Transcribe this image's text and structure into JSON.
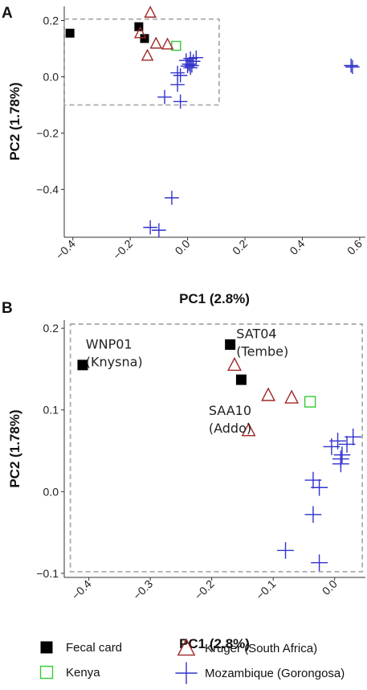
{
  "colors": {
    "fecal_card": "#000000",
    "kenya": "#33cc33",
    "kruger": "#a02828",
    "mozambique": "#3232cc",
    "zoom_box": "#aaaaaa",
    "axis": "#333333"
  },
  "legend": {
    "items": [
      {
        "label": "Fecal card",
        "marker": "filled-square",
        "color_key": "fecal_card"
      },
      {
        "label": "Kenya",
        "marker": "open-square",
        "color_key": "kenya"
      },
      {
        "label": "Kruger (South Africa)",
        "marker": "open-triangle",
        "color_key": "kruger"
      },
      {
        "label": "Mozambique (Gorongosa)",
        "marker": "plus",
        "color_key": "mozambique"
      }
    ]
  },
  "chart_data": [
    {
      "panel": "A",
      "type": "scatter",
      "xlabel": "PC1 (2.8%)",
      "ylabel": "PC2 (1.78%)",
      "xlim": [
        -0.43,
        0.62
      ],
      "ylim": [
        -0.57,
        0.25
      ],
      "xticks": [
        -0.4,
        -0.2,
        0.0,
        0.2,
        0.4,
        0.6
      ],
      "xtick_labels": [
        "−0.4",
        "−0.2",
        "0.0",
        "0.2",
        "0.4",
        "0.6"
      ],
      "yticks": [
        0.2,
        0.0,
        -0.2,
        -0.4
      ],
      "ytick_labels": [
        "0.2",
        "0.0",
        "−0.2",
        "−0.4"
      ],
      "zoom_region": {
        "x": [
          -0.43,
          0.11
        ],
        "y": [
          -0.1,
          0.205
        ]
      },
      "series": [
        {
          "name": "Fecal card",
          "points": [
            [
              -0.41,
              0.155
            ],
            [
              -0.17,
              0.178
            ],
            [
              -0.15,
              0.136
            ]
          ]
        },
        {
          "name": "Kenya",
          "points": [
            [
              -0.04,
              0.11
            ]
          ]
        },
        {
          "name": "Kruger (South Africa)",
          "points": [
            [
              -0.13,
              0.228
            ],
            [
              -0.165,
              0.155
            ],
            [
              -0.11,
              0.118
            ],
            [
              -0.07,
              0.115
            ],
            [
              -0.14,
              0.075
            ]
          ]
        },
        {
          "name": "Mozambique (Gorongosa)",
          "points": [
            [
              -0.005,
              0.058
            ],
            [
              0.01,
              0.065
            ],
            [
              0.02,
              0.055
            ],
            [
              0.005,
              0.045
            ],
            [
              0.0,
              0.038
            ],
            [
              0.01,
              0.032
            ],
            [
              0.015,
              0.04
            ],
            [
              0.03,
              0.068
            ],
            [
              -0.035,
              0.014
            ],
            [
              -0.025,
              0.005
            ],
            [
              -0.035,
              -0.028
            ],
            [
              -0.08,
              -0.072
            ],
            [
              -0.025,
              -0.088
            ],
            [
              0.57,
              0.04
            ],
            [
              0.575,
              0.035
            ],
            [
              -0.055,
              -0.43
            ],
            [
              -0.13,
              -0.535
            ],
            [
              -0.1,
              -0.545
            ]
          ]
        }
      ]
    },
    {
      "panel": "B",
      "type": "scatter",
      "xlabel": "PC1 (2.8%)",
      "ylabel": "PC2 (1.78%)",
      "xlim": [
        -0.44,
        0.05
      ],
      "ylim": [
        -0.105,
        0.21
      ],
      "xticks": [
        -0.4,
        -0.3,
        -0.2,
        -0.1,
        0.0
      ],
      "xtick_labels": [
        "−0.4",
        "−0.3",
        "−0.2",
        "−0.1",
        "0.0"
      ],
      "yticks": [
        0.2,
        0.1,
        0.0,
        -0.1
      ],
      "ytick_labels": [
        "0.2",
        "0.1",
        "0.0",
        "−0.1"
      ],
      "zoom_region": {
        "x": [
          -0.43,
          0.045
        ],
        "y": [
          -0.098,
          0.205
        ]
      },
      "annotations": [
        {
          "lines": [
            "WNP01",
            "(Knysna)"
          ],
          "x": -0.405,
          "y": 0.175
        },
        {
          "lines": [
            "SAT04",
            "(Tembe)"
          ],
          "x": -0.16,
          "y": 0.188
        },
        {
          "lines": [
            "SAA10",
            "(Addo)"
          ],
          "x": -0.205,
          "y": 0.094
        }
      ],
      "series": [
        {
          "name": "Fecal card",
          "points": [
            [
              -0.41,
              0.155
            ],
            [
              -0.17,
              0.18
            ],
            [
              -0.152,
              0.137
            ]
          ]
        },
        {
          "name": "Kenya",
          "points": [
            [
              -0.04,
              0.11
            ]
          ]
        },
        {
          "name": "Kruger (South Africa)",
          "points": [
            [
              -0.163,
              0.155
            ],
            [
              -0.108,
              0.118
            ],
            [
              -0.07,
              0.115
            ],
            [
              -0.14,
              0.075
            ]
          ]
        },
        {
          "name": "Mozambique (Gorongosa)",
          "points": [
            [
              -0.005,
              0.055
            ],
            [
              0.005,
              0.062
            ],
            [
              0.02,
              0.058
            ],
            [
              0.03,
              0.067
            ],
            [
              0.01,
              0.04
            ],
            [
              0.01,
              0.034
            ],
            [
              0.012,
              0.045
            ],
            [
              -0.035,
              0.014
            ],
            [
              -0.025,
              0.005
            ],
            [
              -0.035,
              -0.028
            ],
            [
              -0.08,
              -0.072
            ],
            [
              -0.025,
              -0.087
            ]
          ]
        }
      ]
    }
  ]
}
